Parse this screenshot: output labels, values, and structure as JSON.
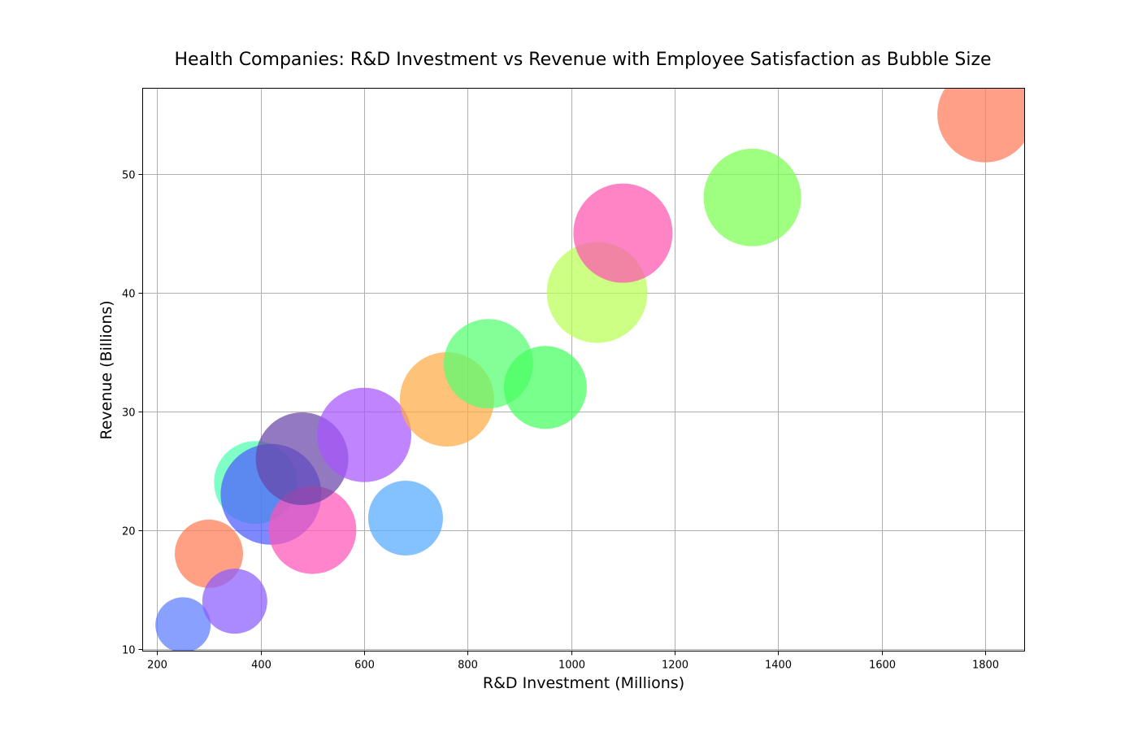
{
  "chart_data": {
    "type": "scatter",
    "title": "Health Companies: R&D Investment vs Revenue with Employee Satisfaction as Bubble Size",
    "xlabel": "R&D Investment (Millions)",
    "ylabel": "Revenue (Billions)",
    "xlim": [
      172,
      1876
    ],
    "ylim": [
      9.8,
      57.2
    ],
    "xticks": [
      200,
      400,
      600,
      800,
      1000,
      1200,
      1400,
      1600,
      1800
    ],
    "yticks": [
      10,
      20,
      30,
      40,
      50
    ],
    "grid": true,
    "bubble_size_meaning": "Employee Satisfaction",
    "points": [
      {
        "x": 250,
        "y": 12,
        "size": 34,
        "color": "#5b7cff"
      },
      {
        "x": 300,
        "y": 18,
        "size": 42,
        "color": "#ff7a55"
      },
      {
        "x": 350,
        "y": 14,
        "size": 40,
        "color": "#8a5bff"
      },
      {
        "x": 390,
        "y": 24,
        "size": 51,
        "color": "#4dffb0"
      },
      {
        "x": 420,
        "y": 23,
        "size": 62,
        "color": "#4d5bff"
      },
      {
        "x": 500,
        "y": 20,
        "size": 54,
        "color": "#ff55b8"
      },
      {
        "x": 480,
        "y": 26,
        "size": 57,
        "color": "#6a45a8"
      },
      {
        "x": 600,
        "y": 28,
        "size": 58,
        "color": "#a855ff"
      },
      {
        "x": 680,
        "y": 21,
        "size": 46,
        "color": "#55aaff"
      },
      {
        "x": 760,
        "y": 31,
        "size": 58,
        "color": "#ffaa45"
      },
      {
        "x": 840,
        "y": 34,
        "size": 55,
        "color": "#55ff70"
      },
      {
        "x": 950,
        "y": 32,
        "size": 51,
        "color": "#45ff60"
      },
      {
        "x": 1050,
        "y": 40,
        "size": 62,
        "color": "#b8ff55"
      },
      {
        "x": 1100,
        "y": 45,
        "size": 61,
        "color": "#ff55b0"
      },
      {
        "x": 1350,
        "y": 48,
        "size": 60,
        "color": "#7aff50"
      },
      {
        "x": 1800,
        "y": 55,
        "size": 59,
        "color": "#ff7a5a"
      }
    ]
  }
}
